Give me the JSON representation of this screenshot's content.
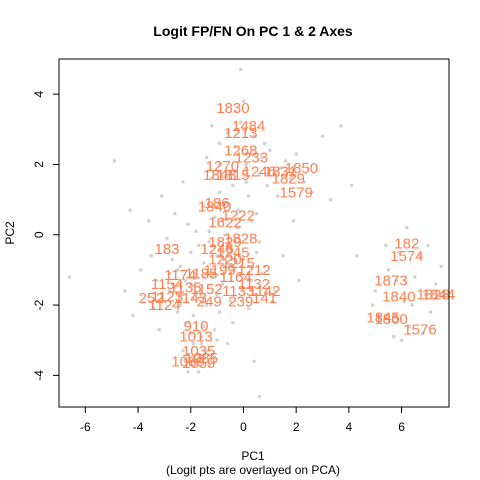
{
  "chart_data": {
    "type": "scatter",
    "title": "Logit FP/FN On PC 1 & 2 Axes",
    "xlabel": "PC1",
    "subtitle": "(Logit pts are overlayed on PCA)",
    "ylabel": "PC2",
    "xlim": [
      -7,
      7.8
    ],
    "ylim": [
      -4.9,
      5.0
    ],
    "xticks": [
      -6,
      -4,
      -2,
      0,
      2,
      4,
      6
    ],
    "yticks": [
      -4,
      -2,
      0,
      2,
      4
    ],
    "grid": false,
    "legend": "none",
    "background_series": {
      "color": "#d3d3d3",
      "points": [
        [
          -6.6,
          -1.2
        ],
        [
          -4.5,
          -1.6
        ],
        [
          -4.2,
          -2.3
        ],
        [
          -3.9,
          -1.0
        ],
        [
          -3.5,
          -0.6
        ],
        [
          -3.3,
          -1.3
        ],
        [
          -3.2,
          -2.7
        ],
        [
          -3.0,
          -1.9
        ],
        [
          -2.8,
          -1.1
        ],
        [
          -2.7,
          -0.7
        ],
        [
          -2.6,
          -1.5
        ],
        [
          -2.5,
          -2.2
        ],
        [
          -2.4,
          -0.9
        ],
        [
          -2.3,
          -1.7
        ],
        [
          -2.2,
          -1.3
        ],
        [
          -2.1,
          -2.5
        ],
        [
          -2.0,
          -0.5
        ],
        [
          -1.9,
          -1.8
        ],
        [
          -1.8,
          -1.1
        ],
        [
          -1.7,
          -0.3
        ],
        [
          -1.6,
          -1.6
        ],
        [
          -1.5,
          -0.8
        ],
        [
          -1.4,
          -2.0
        ],
        [
          -1.3,
          -0.2
        ],
        [
          -1.2,
          -1.2
        ],
        [
          -1.1,
          0.5
        ],
        [
          -1.0,
          -0.6
        ],
        [
          -0.9,
          1.2
        ],
        [
          -0.8,
          -1.4
        ],
        [
          -0.7,
          0.9
        ],
        [
          -0.6,
          -0.4
        ],
        [
          -0.5,
          1.8
        ],
        [
          -0.4,
          -1.0
        ],
        [
          -0.3,
          2.5
        ],
        [
          -0.2,
          0.2
        ],
        [
          -0.1,
          3.2
        ],
        [
          0.0,
          -0.7
        ],
        [
          0.1,
          2.0
        ],
        [
          0.2,
          1.1
        ],
        [
          0.3,
          -1.3
        ],
        [
          0.4,
          2.8
        ],
        [
          0.5,
          0.6
        ],
        [
          0.6,
          1.7
        ],
        [
          0.7,
          2.2
        ],
        [
          0.8,
          -0.9
        ],
        [
          0.9,
          1.4
        ],
        [
          1.0,
          2.4
        ],
        [
          1.2,
          -1.6
        ],
        [
          1.4,
          1.9
        ],
        [
          1.6,
          2.1
        ],
        [
          1.8,
          1.6
        ],
        [
          2.0,
          2.3
        ],
        [
          2.3,
          1.5
        ],
        [
          2.6,
          1.2
        ],
        [
          3.0,
          2.8
        ],
        [
          3.3,
          1.0
        ],
        [
          3.7,
          3.1
        ],
        [
          4.1,
          1.4
        ],
        [
          4.3,
          -0.6
        ],
        [
          -0.1,
          4.7
        ],
        [
          0.0,
          3.8
        ],
        [
          -0.3,
          3.5
        ],
        [
          -0.6,
          2.9
        ],
        [
          -0.9,
          2.6
        ],
        [
          -1.2,
          1.6
        ],
        [
          -1.5,
          0.8
        ],
        [
          -1.8,
          0.1
        ],
        [
          -1.1,
          -2.7
        ],
        [
          -1.4,
          -3.3
        ],
        [
          -1.7,
          -3.9
        ],
        [
          -1.9,
          -3.1
        ],
        [
          -2.2,
          -3.6
        ],
        [
          -1.6,
          -2.9
        ],
        [
          -0.6,
          -3.1
        ],
        [
          0.4,
          -3.6
        ],
        [
          0.6,
          -4.6
        ],
        [
          -0.4,
          -2.5
        ],
        [
          -0.9,
          -2.2
        ],
        [
          -1.2,
          3.1
        ],
        [
          -4.9,
          2.1
        ],
        [
          -4.3,
          0.7
        ],
        [
          -3.6,
          0.4
        ],
        [
          -3.1,
          1.1
        ],
        [
          -2.6,
          0.6
        ],
        [
          -2.3,
          1.5
        ],
        [
          -2.9,
          -0.1
        ],
        [
          -2.1,
          0.3
        ],
        [
          -0.5,
          -1.9
        ],
        [
          0.2,
          -2.1
        ],
        [
          0.7,
          -1.1
        ],
        [
          1.1,
          -1.9
        ],
        [
          1.5,
          -0.6
        ],
        [
          1.9,
          0.4
        ],
        [
          2.1,
          -1.3
        ],
        [
          5.0,
          -1.6
        ],
        [
          5.2,
          -2.4
        ],
        [
          5.5,
          -1.0
        ],
        [
          5.7,
          -2.9
        ],
        [
          5.9,
          -0.5
        ],
        [
          6.1,
          -1.9
        ],
        [
          6.3,
          -2.6
        ],
        [
          6.5,
          -1.2
        ],
        [
          6.7,
          -0.6
        ],
        [
          6.9,
          -1.7
        ],
        [
          7.1,
          -2.2
        ],
        [
          7.3,
          -1.4
        ],
        [
          7.5,
          -0.9
        ],
        [
          5.4,
          -0.3
        ],
        [
          6.0,
          -3.0
        ],
        [
          6.8,
          -2.8
        ],
        [
          4.9,
          -2.0
        ],
        [
          6.2,
          0.2
        ],
        [
          7.0,
          -0.3
        ],
        [
          5.8,
          -1.3
        ],
        [
          6.4,
          -2.0
        ],
        [
          -2.5,
          -1.0
        ],
        [
          -2.0,
          -1.4
        ],
        [
          -1.5,
          -1.2
        ],
        [
          -1.0,
          -1.7
        ],
        [
          -0.5,
          -0.9
        ],
        [
          0.0,
          -1.5
        ],
        [
          0.5,
          -0.5
        ],
        [
          -0.7,
          0.0
        ],
        [
          -0.2,
          0.7
        ],
        [
          0.3,
          0.4
        ],
        [
          -0.4,
          1.4
        ],
        [
          0.1,
          1.5
        ],
        [
          -1.3,
          0.1
        ],
        [
          -0.8,
          0.4
        ],
        [
          -0.3,
          -0.2
        ],
        [
          0.6,
          -0.2
        ],
        [
          -2.4,
          -2.0
        ],
        [
          -1.9,
          -2.3
        ],
        [
          -2.8,
          -1.6
        ],
        [
          -3.4,
          -2.1
        ],
        [
          -1.4,
          2.2
        ],
        [
          -0.9,
          2.0
        ],
        [
          0.3,
          3.0
        ],
        [
          0.8,
          2.6
        ],
        [
          1.3,
          1.1
        ],
        [
          -1.7,
          -3.4
        ],
        [
          -2.0,
          -2.8
        ],
        [
          -1.3,
          -3.7
        ],
        [
          -1.0,
          -3.0
        ],
        [
          -1.5,
          -2.6
        ],
        [
          -2.3,
          -3.3
        ],
        [
          -1.8,
          -3.6
        ],
        [
          -1.1,
          -3.5
        ],
        [
          -1.6,
          -3.1
        ],
        [
          -2.1,
          -3.9
        ]
      ]
    },
    "labeled_points": [
      {
        "label": "1830",
        "x": -0.4,
        "y": 3.6
      },
      {
        "label": "1484",
        "x": 0.2,
        "y": 3.1
      },
      {
        "label": "1213",
        "x": -0.1,
        "y": 2.9
      },
      {
        "label": "1268",
        "x": -0.1,
        "y": 2.4
      },
      {
        "label": "1233",
        "x": 0.3,
        "y": 2.2
      },
      {
        "label": "1270",
        "x": -0.8,
        "y": 1.95
      },
      {
        "label": "1246",
        "x": 0.6,
        "y": 1.8
      },
      {
        "label": "1831",
        "x": 1.4,
        "y": 1.8
      },
      {
        "label": "1850",
        "x": 2.2,
        "y": 1.9
      },
      {
        "label": "1829",
        "x": 1.7,
        "y": 1.6
      },
      {
        "label": "1848",
        "x": -0.9,
        "y": 1.7
      },
      {
        "label": "1815",
        "x": -0.4,
        "y": 1.7
      },
      {
        "label": "1579",
        "x": 2.0,
        "y": 1.2
      },
      {
        "label": "186",
        "x": -1.0,
        "y": 0.9
      },
      {
        "label": "1840",
        "x": -1.1,
        "y": 0.8
      },
      {
        "label": "1222",
        "x": -0.2,
        "y": 0.55
      },
      {
        "label": "1622",
        "x": -0.7,
        "y": 0.35
      },
      {
        "label": "1828",
        "x": -0.1,
        "y": -0.1
      },
      {
        "label": "1829",
        "x": -0.7,
        "y": -0.2
      },
      {
        "label": "183",
        "x": -2.9,
        "y": -0.4
      },
      {
        "label": "1246",
        "x": -1.0,
        "y": -0.4
      },
      {
        "label": "1245",
        "x": -0.4,
        "y": -0.5
      },
      {
        "label": "1220",
        "x": -0.7,
        "y": -0.7
      },
      {
        "label": "1215",
        "x": -0.2,
        "y": -0.8
      },
      {
        "label": "1212",
        "x": 0.4,
        "y": -1.0
      },
      {
        "label": "1199",
        "x": -0.9,
        "y": -1.0
      },
      {
        "label": "1174",
        "x": -2.4,
        "y": -1.15
      },
      {
        "label": "1185",
        "x": -1.6,
        "y": -1.1
      },
      {
        "label": "1164",
        "x": -0.3,
        "y": -1.2
      },
      {
        "label": "1154",
        "x": -2.9,
        "y": -1.4
      },
      {
        "label": "1135",
        "x": -2.2,
        "y": -1.5
      },
      {
        "label": "1152",
        "x": -1.4,
        "y": -1.55
      },
      {
        "label": "1132",
        "x": 0.4,
        "y": -1.4
      },
      {
        "label": "1133",
        "x": -0.2,
        "y": -1.6
      },
      {
        "label": "1142",
        "x": 0.8,
        "y": -1.6
      },
      {
        "label": "252",
        "x": -3.5,
        "y": -1.8
      },
      {
        "label": "1123",
        "x": -2.9,
        "y": -1.75
      },
      {
        "label": "1143",
        "x": -2.0,
        "y": -1.8
      },
      {
        "label": "249",
        "x": -1.3,
        "y": -1.9
      },
      {
        "label": "239",
        "x": -0.1,
        "y": -1.9
      },
      {
        "label": "141",
        "x": 0.8,
        "y": -1.8
      },
      {
        "label": "1124",
        "x": -3.0,
        "y": -2.0
      },
      {
        "label": "182",
        "x": 6.2,
        "y": -0.25
      },
      {
        "label": "1574",
        "x": 6.2,
        "y": -0.6
      },
      {
        "label": "1873",
        "x": 5.6,
        "y": -1.3
      },
      {
        "label": "1840",
        "x": 5.9,
        "y": -1.75
      },
      {
        "label": "1828",
        "x": 7.2,
        "y": -1.7
      },
      {
        "label": "1844",
        "x": 7.4,
        "y": -1.7
      },
      {
        "label": "1845",
        "x": 5.3,
        "y": -2.35
      },
      {
        "label": "1860",
        "x": 5.6,
        "y": -2.4
      },
      {
        "label": "1576",
        "x": 6.7,
        "y": -2.7
      },
      {
        "label": "910",
        "x": -1.8,
        "y": -2.6
      },
      {
        "label": "1013",
        "x": -1.8,
        "y": -2.9
      },
      {
        "label": "1035",
        "x": -1.7,
        "y": -3.3
      },
      {
        "label": "1085",
        "x": -1.6,
        "y": -3.5
      },
      {
        "label": "1089",
        "x": -2.1,
        "y": -3.6
      },
      {
        "label": "1059",
        "x": -1.7,
        "y": -3.65
      }
    ]
  }
}
